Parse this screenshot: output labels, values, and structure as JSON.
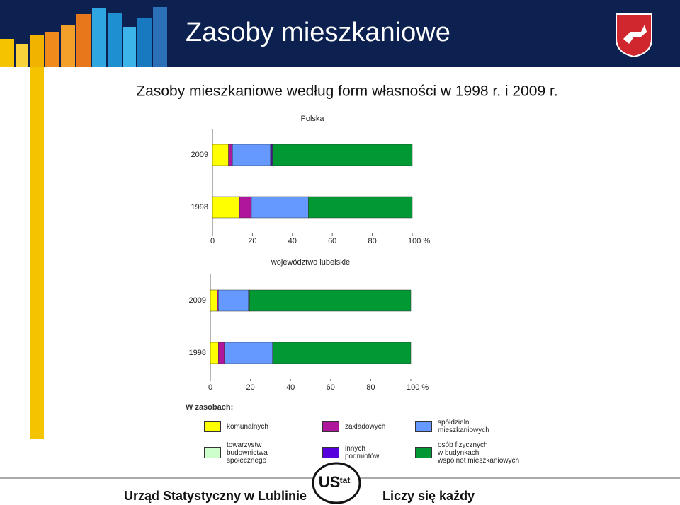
{
  "header": {
    "title": "Zasoby mieszkaniowe",
    "subtitle": "Zasoby mieszkaniowe według form własności w 1998 r. i 2009 r."
  },
  "legend_title": "W zasobach:",
  "footer": {
    "left": "Urząd Statystyczny w Lublinie",
    "logo": "US",
    "logo_sup": "tat",
    "right": "Liczy się każdy"
  },
  "chart_data": [
    {
      "type": "stacked-barh",
      "title": "Polska",
      "categories": [
        "2009",
        "1998"
      ],
      "xlim": [
        0,
        100
      ],
      "xticks": [
        0,
        20,
        40,
        60,
        80,
        {
          "value": 100,
          "label": "100 %"
        }
      ],
      "series": [
        {
          "name": "komunalnych",
          "color": "#ffff00",
          "values": [
            8,
            13.5
          ]
        },
        {
          "name": "zakładowych",
          "color": "#b0169b",
          "values": [
            2,
            6
          ]
        },
        {
          "name": "spółdzielni\nmieszkaniowych",
          "color": "#6699ff",
          "values": [
            19,
            28.5
          ]
        },
        {
          "name": "towarzystw\nbudownictwa\nspołecznego",
          "color": "#ccffcc",
          "values": [
            0.5,
            0
          ]
        },
        {
          "name": "innych\npodmiotów",
          "color": "#5500dd",
          "values": [
            0.5,
            0
          ]
        },
        {
          "name": "osób fizycznych\nw budynkach\nwspólnot mieszkaniowych",
          "color": "#009933",
          "values": [
            70,
            52
          ]
        }
      ]
    },
    {
      "type": "stacked-barh",
      "title": "województwo lubelskie",
      "categories": [
        "2009",
        "1998"
      ],
      "xlim": [
        0,
        100
      ],
      "xticks": [
        0,
        20,
        40,
        60,
        80,
        {
          "value": 100,
          "label": "100 %"
        }
      ],
      "series": [
        {
          "color": "#ffff00",
          "values": [
            3.5,
            4
          ]
        },
        {
          "color": "#b0169b",
          "values": [
            0.5,
            3
          ]
        },
        {
          "color": "#6699ff",
          "values": [
            15,
            24
          ]
        },
        {
          "color": "#ccffcc",
          "values": [
            0.5,
            0
          ]
        },
        {
          "color": "#5500dd",
          "values": [
            0,
            0
          ]
        },
        {
          "color": "#009933",
          "values": [
            80.5,
            69
          ]
        }
      ]
    }
  ]
}
